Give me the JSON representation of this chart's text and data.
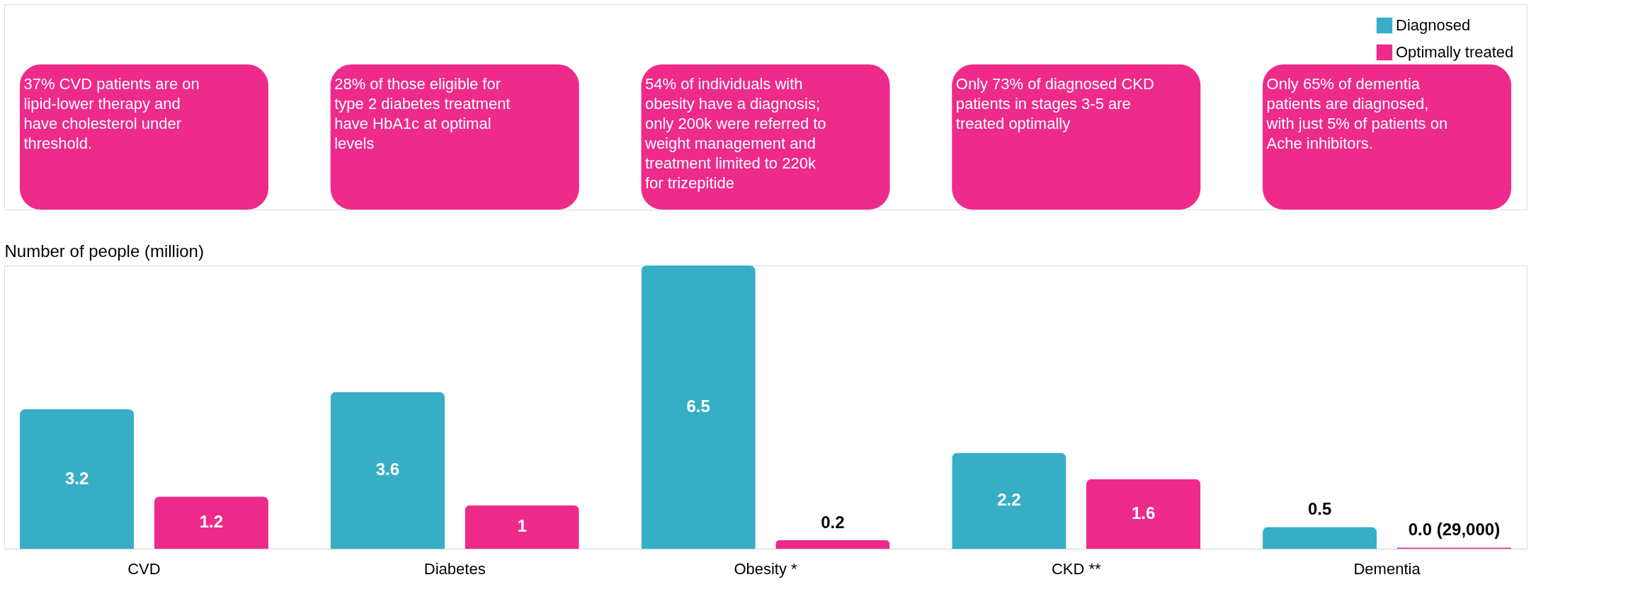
{
  "chart_data": {
    "type": "bar",
    "ylabel": "Number of people (million)",
    "categories": [
      "CVD",
      "Diabetes",
      "Obesity *",
      "CKD **",
      "Dementia"
    ],
    "series": [
      {
        "name": "Diagnosed",
        "color": "#36afc6",
        "values": [
          3.2,
          3.6,
          6.5,
          2.2,
          0.5
        ],
        "value_labels": [
          "3.2",
          "3.6",
          "6.5",
          "2.2",
          "0.5"
        ]
      },
      {
        "name": "Optimally treated",
        "color": "#ee2a8a",
        "values": [
          1.2,
          1,
          0.2,
          1.6,
          0.029
        ],
        "value_labels": [
          "1.2",
          "1",
          "0.2",
          "1.6",
          "0.0 (29,000)"
        ]
      }
    ],
    "ylim": [
      0,
      6.5
    ],
    "tick_labels": "x",
    "grid": false,
    "legend": "top right",
    "annotations": [
      "37% CVD patients are on lipid-lower therapy and have cholesterol under threshold.",
      "28% of those eligible for type 2 diabetes treatment have HbA1c at optimal levels",
      "54% of individuals with obesity have a diagnosis; only 200k were referred to weight management and treatment limited to 220k for trizepitide",
      "Only 73% of diagnosed CKD patients in stages 3-5 are treated optimally",
      "Only 65% of dementia patients are diagnosed, with just 5% of patients on Ache inhibitors."
    ]
  }
}
